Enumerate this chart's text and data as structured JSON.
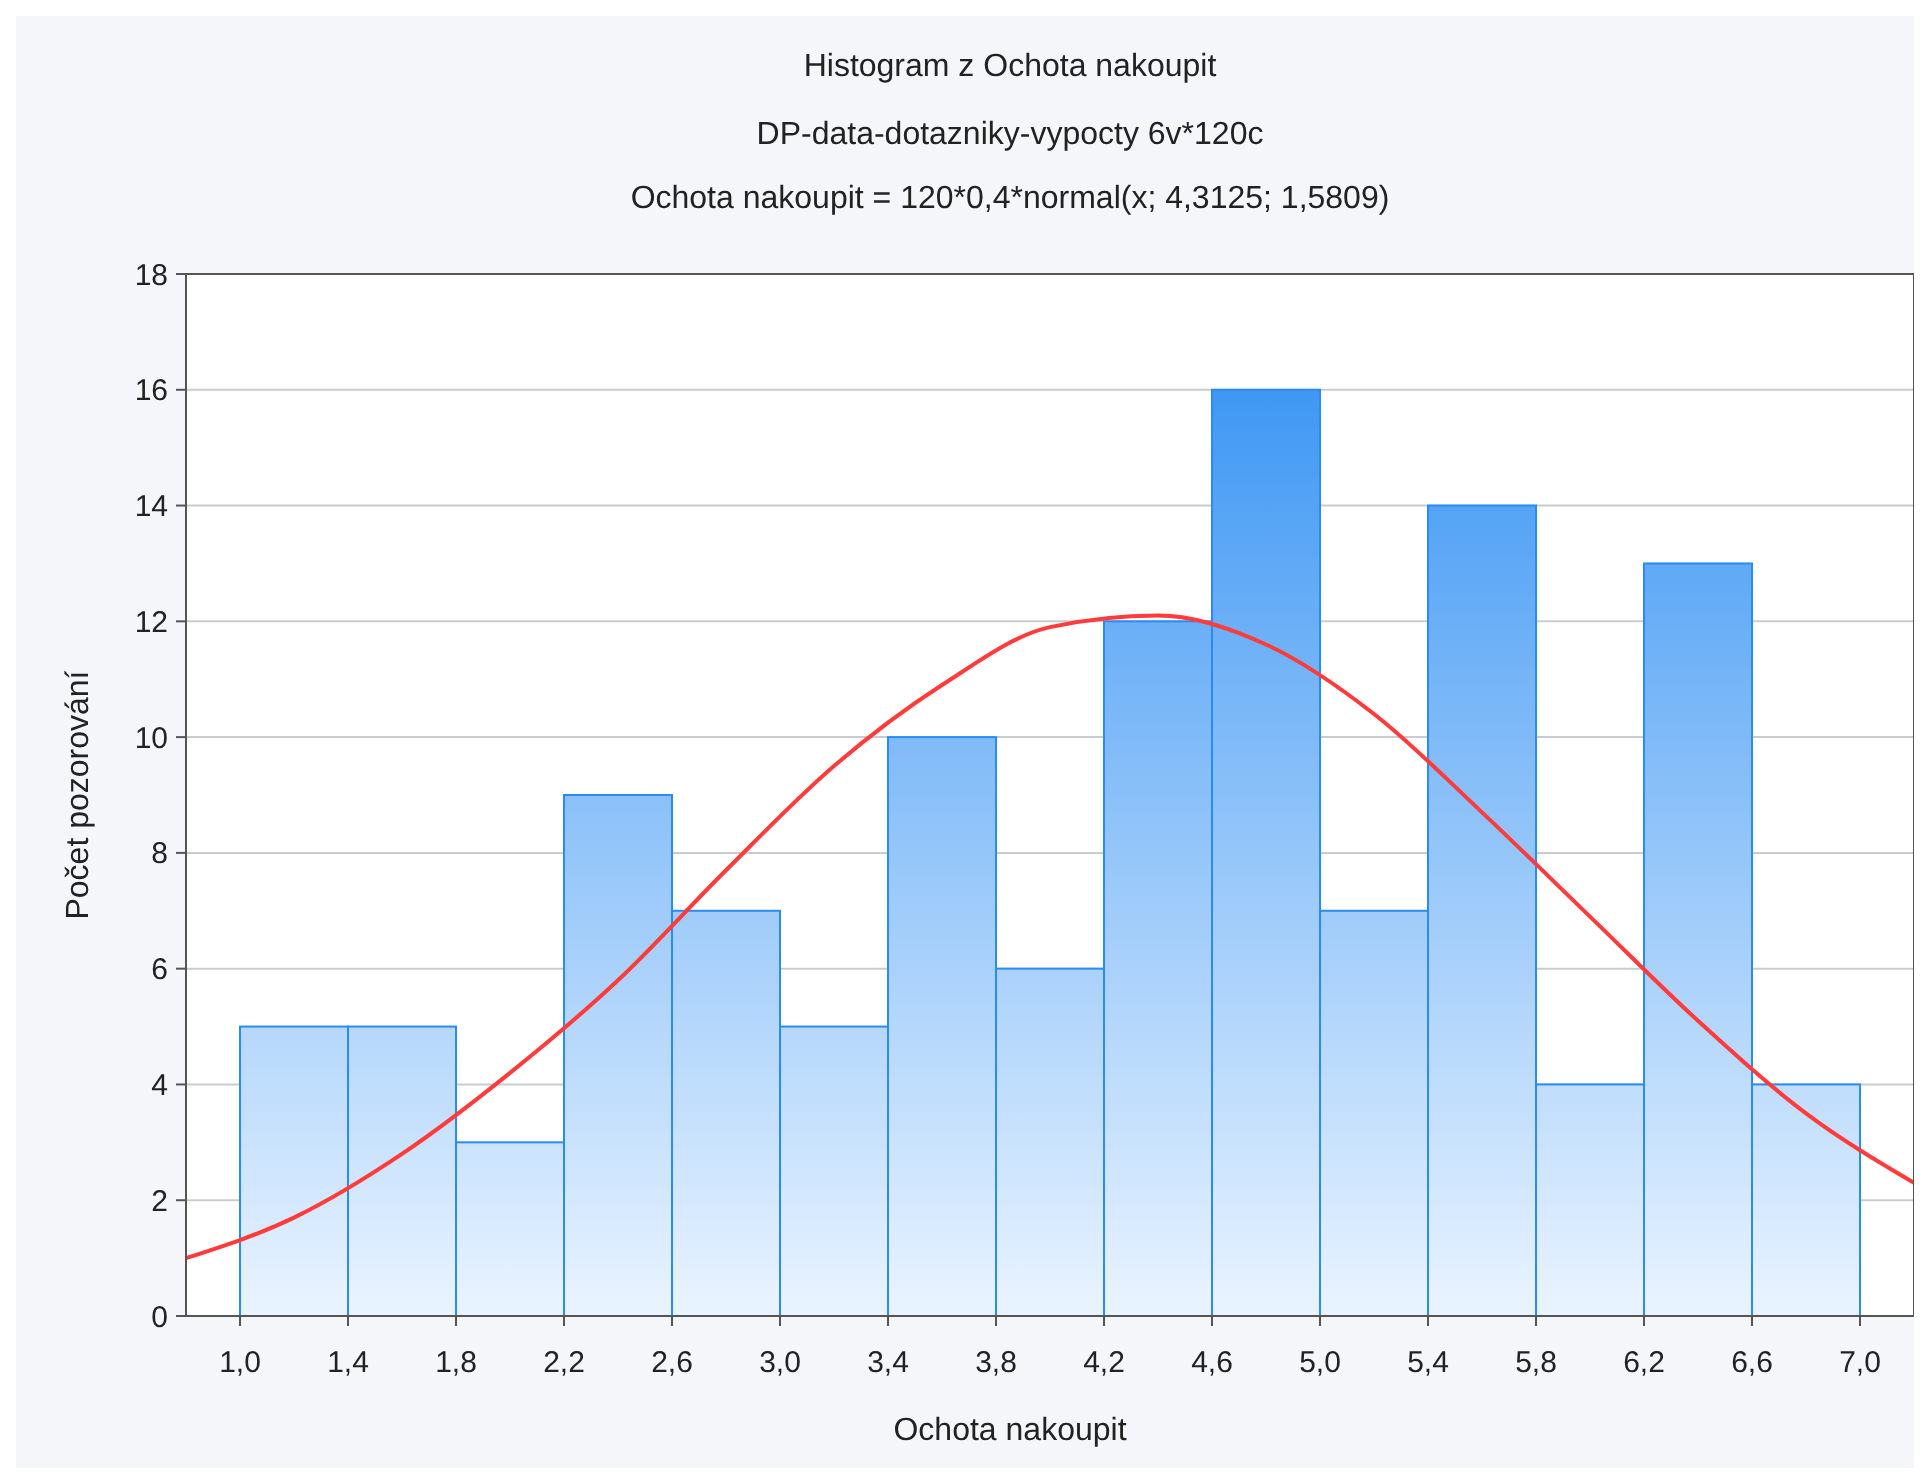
{
  "chart_data": {
    "type": "histogram",
    "title": "Histogram z Ochota nakoupit",
    "subtitle": "DP-data-dotazniky-vypocty 6v*120c",
    "annotations": [
      "Ochota nakoupit = 120*0,4*normal(x; 4,3125; 1,5809)"
    ],
    "xlabel": "Ochota nakoupit",
    "ylabel": "Počet pozorování",
    "bins": [
      1.0,
      1.4,
      1.8,
      2.2,
      2.6,
      3.0,
      3.4,
      3.8,
      4.2,
      4.6,
      5.0,
      5.4,
      5.8,
      6.2,
      6.6,
      7.0
    ],
    "series": [
      {
        "color": "#2a8cf2",
        "values": [
          5,
          5,
          3,
          9,
          7,
          5,
          10,
          6,
          12,
          16,
          7,
          14,
          4,
          13,
          4
        ]
      },
      {
        "type": "line",
        "color": "#ff3b3b",
        "x": [
          0.8,
          1.2,
          1.6,
          2.0,
          2.4,
          2.8,
          3.2,
          3.6,
          4.0,
          4.4,
          4.8,
          5.2,
          5.6,
          6.0,
          6.4,
          6.8,
          7.2
        ],
        "values": [
          1.0,
          1.7,
          2.8,
          4.2,
          5.8,
          7.7,
          9.5,
          10.9,
          11.9,
          12.1,
          11.6,
          10.4,
          8.7,
          6.9,
          5.1,
          3.5,
          2.3
        ]
      }
    ],
    "xlim": [
      0.8,
      7.2
    ],
    "xticks": [
      {
        "value": 1.0,
        "label": "1,0"
      },
      {
        "value": 1.4,
        "label": "1,4"
      },
      {
        "value": 1.8,
        "label": "1,8"
      },
      {
        "value": 2.2,
        "label": "2,2"
      },
      {
        "value": 2.6,
        "label": "2,6"
      },
      {
        "value": 3.0,
        "label": "3,0"
      },
      {
        "value": 3.4,
        "label": "3,4"
      },
      {
        "value": 3.8,
        "label": "3,8"
      },
      {
        "value": 4.2,
        "label": "4,2"
      },
      {
        "value": 4.6,
        "label": "4,6"
      },
      {
        "value": 5.0,
        "label": "5,0"
      },
      {
        "value": 5.4,
        "label": "5,4"
      },
      {
        "value": 5.8,
        "label": "5,8"
      },
      {
        "value": 6.2,
        "label": "6,2"
      },
      {
        "value": 6.6,
        "label": "6,6"
      },
      {
        "value": 7.0,
        "label": "7,0"
      }
    ],
    "ylim": [
      0,
      18
    ],
    "yticks": [
      0,
      2,
      4,
      6,
      8,
      10,
      12,
      14,
      16,
      18
    ],
    "grid": "y"
  }
}
